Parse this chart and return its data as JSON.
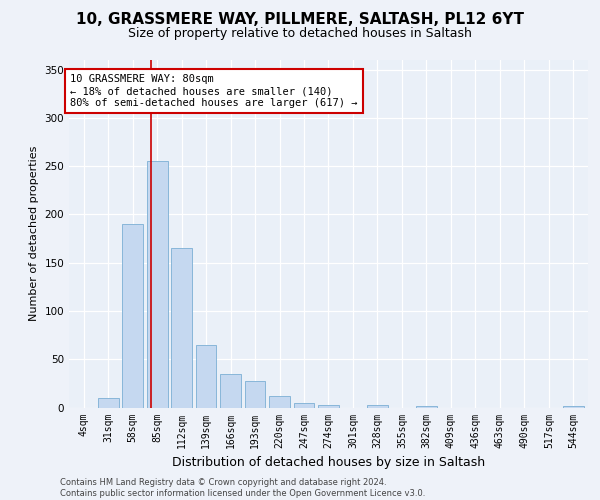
{
  "title1": "10, GRASSMERE WAY, PILLMERE, SALTASH, PL12 6YT",
  "title2": "Size of property relative to detached houses in Saltash",
  "xlabel": "Distribution of detached houses by size in Saltash",
  "ylabel": "Number of detached properties",
  "bar_labels": [
    "4sqm",
    "31sqm",
    "58sqm",
    "85sqm",
    "112sqm",
    "139sqm",
    "166sqm",
    "193sqm",
    "220sqm",
    "247sqm",
    "274sqm",
    "301sqm",
    "328sqm",
    "355sqm",
    "382sqm",
    "409sqm",
    "436sqm",
    "463sqm",
    "490sqm",
    "517sqm",
    "544sqm"
  ],
  "bar_values": [
    0,
    10,
    190,
    255,
    165,
    65,
    35,
    27,
    12,
    5,
    3,
    0,
    3,
    0,
    2,
    0,
    0,
    0,
    0,
    0,
    2
  ],
  "bar_color": "#c5d8f0",
  "bar_edge_color": "#7bafd4",
  "annotation_text": "10 GRASSMERE WAY: 80sqm\n← 18% of detached houses are smaller (140)\n80% of semi-detached houses are larger (617) →",
  "vline_x": 2.73,
  "vline_color": "#cc0000",
  "annotation_box_color": "#ffffff",
  "annotation_box_edge_color": "#cc0000",
  "ylim": [
    0,
    360
  ],
  "yticks": [
    0,
    50,
    100,
    150,
    200,
    250,
    300,
    350
  ],
  "footer": "Contains HM Land Registry data © Crown copyright and database right 2024.\nContains public sector information licensed under the Open Government Licence v3.0.",
  "bg_color": "#eef2f9",
  "plot_bg_color": "#eaf0f8",
  "title1_fontsize": 11,
  "title2_fontsize": 9,
  "xlabel_fontsize": 9,
  "ylabel_fontsize": 8,
  "annot_fontsize": 7.5,
  "tick_fontsize": 7,
  "footer_fontsize": 6
}
